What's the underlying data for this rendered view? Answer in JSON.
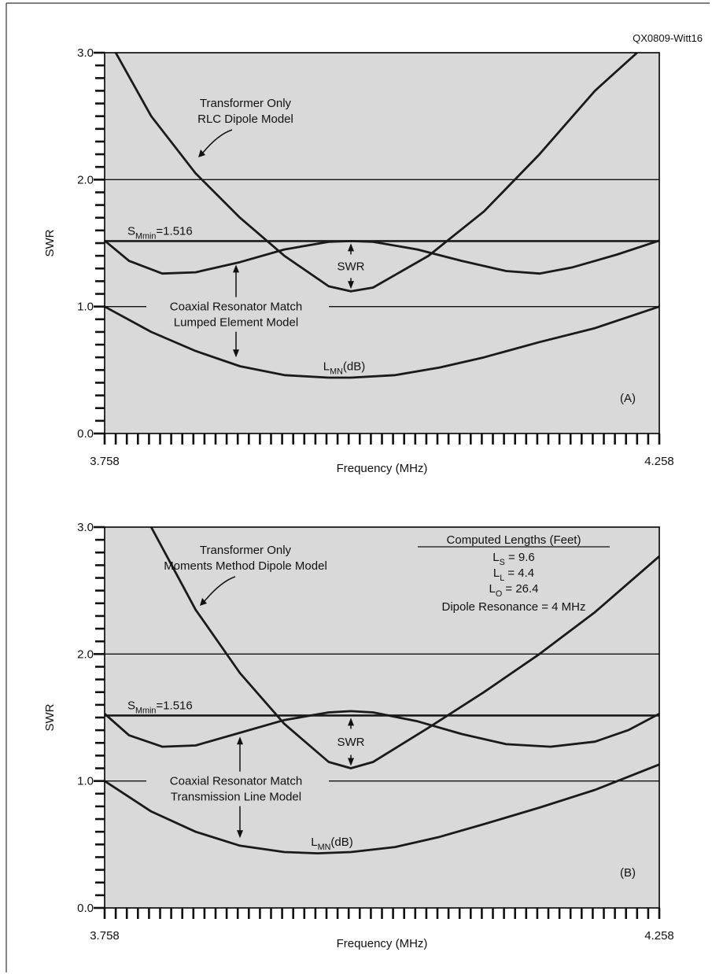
{
  "figure_id": "QX0809-Witt16",
  "colors": {
    "plot_bg": "#d9d9d9",
    "curve": "#1a1a1a",
    "border": "#000000",
    "frame": "#333333"
  },
  "chart_data": [
    {
      "type": "line",
      "panel_label": "(A)",
      "ylabel": "SWR",
      "xlabel": "Frequency (MHz)",
      "x_range": [
        3.758,
        4.258
      ],
      "ylim": [
        0.0,
        3.0
      ],
      "y_ticks": [
        "0.0",
        "1.0",
        "2.0",
        "3.0"
      ],
      "x_tick_labels": [
        "3.758",
        "4.258"
      ],
      "grid": "horizontal reference lines at 1.0 and 2.0",
      "reference_line": {
        "y": 1.516,
        "label_prefix": "S",
        "label_sub": "Mmin",
        "label_suffix": "=1.516"
      },
      "annotations": {
        "transformer": [
          "Transformer Only",
          "RLC Dipole Model"
        ],
        "coaxial": [
          "Coaxial Resonator Match",
          "Lumped Element Model"
        ],
        "swr_label": "SWR",
        "loss_prefix": "L",
        "loss_sub": "MN",
        "loss_suffix": "(dB)"
      },
      "series": [
        {
          "points": [
            [
              3.768,
              3.0
            ],
            [
              3.8,
              2.5
            ],
            [
              3.84,
              2.05
            ],
            [
              3.88,
              1.7
            ],
            [
              3.92,
              1.4
            ],
            [
              3.96,
              1.16
            ],
            [
              3.98,
              1.12
            ],
            [
              4.0,
              1.15
            ],
            [
              4.05,
              1.4
            ],
            [
              4.1,
              1.75
            ],
            [
              4.15,
              2.2
            ],
            [
              4.2,
              2.7
            ],
            [
              4.238,
              3.0
            ]
          ]
        },
        {
          "points": [
            [
              3.758,
              1.52
            ],
            [
              3.78,
              1.36
            ],
            [
              3.81,
              1.26
            ],
            [
              3.84,
              1.27
            ],
            [
              3.88,
              1.35
            ],
            [
              3.92,
              1.45
            ],
            [
              3.96,
              1.51
            ],
            [
              3.98,
              1.516
            ],
            [
              4.0,
              1.51
            ],
            [
              4.04,
              1.45
            ],
            [
              4.08,
              1.36
            ],
            [
              4.12,
              1.28
            ],
            [
              4.15,
              1.26
            ],
            [
              4.18,
              1.31
            ],
            [
              4.22,
              1.41
            ],
            [
              4.258,
              1.52
            ]
          ]
        },
        {
          "points": [
            [
              3.758,
              1.0
            ],
            [
              3.8,
              0.8
            ],
            [
              3.84,
              0.65
            ],
            [
              3.88,
              0.53
            ],
            [
              3.92,
              0.46
            ],
            [
              3.96,
              0.44
            ],
            [
              3.98,
              0.44
            ],
            [
              4.02,
              0.46
            ],
            [
              4.06,
              0.52
            ],
            [
              4.1,
              0.6
            ],
            [
              4.15,
              0.72
            ],
            [
              4.2,
              0.83
            ],
            [
              4.258,
              1.0
            ]
          ]
        }
      ]
    },
    {
      "type": "line",
      "panel_label": "(B)",
      "ylabel": "SWR",
      "xlabel": "Frequency (MHz)",
      "x_range": [
        3.758,
        4.258
      ],
      "ylim": [
        0.0,
        3.0
      ],
      "y_ticks": [
        "0.0",
        "1.0",
        "2.0",
        "3.0"
      ],
      "x_tick_labels": [
        "3.758",
        "4.258"
      ],
      "grid": "horizontal reference lines at 1.0 and 2.0",
      "reference_line": {
        "y": 1.516,
        "label_prefix": "S",
        "label_sub": "Mmin",
        "label_suffix": "=1.516"
      },
      "annotations": {
        "transformer": [
          "Transformer Only",
          "Moments Method Dipole Model"
        ],
        "coaxial": [
          "Coaxial Resonator Match",
          "Transmission Line Model"
        ],
        "swr_label": "SWR",
        "loss_prefix": "L",
        "loss_sub": "MN",
        "loss_suffix": "(dB)"
      },
      "computed_lengths": {
        "title": "Computed Lengths (Feet)",
        "lines": [
          {
            "prefix": "L",
            "sub": "S",
            "suffix": " = 9.6"
          },
          {
            "prefix": "L",
            "sub": "L",
            "suffix": " = 4.4"
          },
          {
            "prefix": "L",
            "sub": "O",
            "suffix": " = 26.4"
          }
        ],
        "resonance": "Dipole Resonance = 4 MHz"
      },
      "series": [
        {
          "points": [
            [
              3.8,
              3.0
            ],
            [
              3.84,
              2.35
            ],
            [
              3.88,
              1.85
            ],
            [
              3.92,
              1.45
            ],
            [
              3.96,
              1.15
            ],
            [
              3.98,
              1.1
            ],
            [
              4.0,
              1.15
            ],
            [
              4.05,
              1.42
            ],
            [
              4.1,
              1.7
            ],
            [
              4.15,
              2.0
            ],
            [
              4.2,
              2.33
            ],
            [
              4.258,
              2.77
            ]
          ]
        },
        {
          "points": [
            [
              3.758,
              1.53
            ],
            [
              3.78,
              1.36
            ],
            [
              3.81,
              1.27
            ],
            [
              3.84,
              1.28
            ],
            [
              3.88,
              1.38
            ],
            [
              3.92,
              1.48
            ],
            [
              3.96,
              1.54
            ],
            [
              3.98,
              1.55
            ],
            [
              4.0,
              1.54
            ],
            [
              4.04,
              1.47
            ],
            [
              4.08,
              1.37
            ],
            [
              4.12,
              1.29
            ],
            [
              4.16,
              1.27
            ],
            [
              4.2,
              1.31
            ],
            [
              4.23,
              1.4
            ],
            [
              4.258,
              1.53
            ]
          ]
        },
        {
          "points": [
            [
              3.758,
              1.0
            ],
            [
              3.8,
              0.76
            ],
            [
              3.84,
              0.6
            ],
            [
              3.88,
              0.49
            ],
            [
              3.92,
              0.44
            ],
            [
              3.95,
              0.43
            ],
            [
              3.98,
              0.44
            ],
            [
              4.02,
              0.48
            ],
            [
              4.06,
              0.56
            ],
            [
              4.1,
              0.66
            ],
            [
              4.15,
              0.79
            ],
            [
              4.2,
              0.93
            ],
            [
              4.258,
              1.13
            ]
          ]
        }
      ]
    }
  ]
}
